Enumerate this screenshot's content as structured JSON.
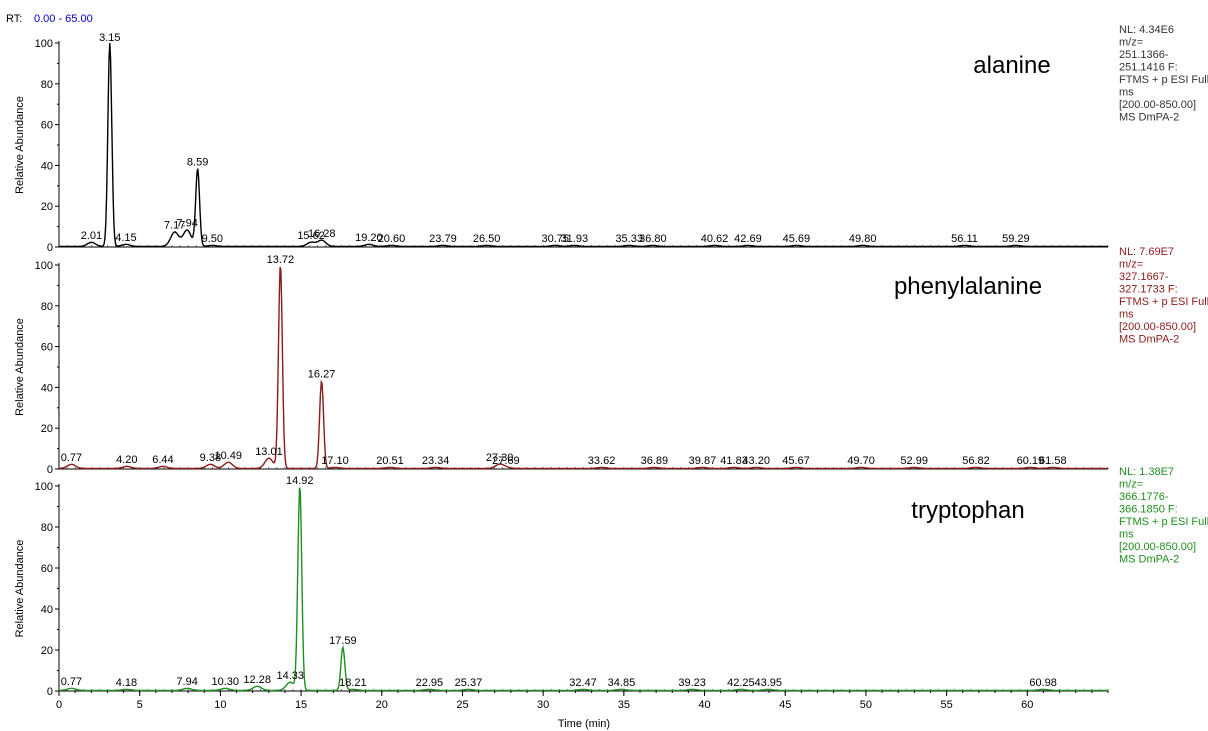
{
  "rt_label": "RT:",
  "rt_range": "0.00 - 65.00",
  "chart_data": {
    "type": "line",
    "xlabel": "Time (min)",
    "xlim": [
      0,
      65
    ],
    "x_ticks": [
      0,
      5,
      10,
      15,
      20,
      25,
      30,
      35,
      40,
      45,
      50,
      55,
      60
    ],
    "panels": [
      {
        "compound": "alanine",
        "ylabel": "Relative Abundance",
        "ylim": [
          0,
          100
        ],
        "y_ticks": [
          0,
          20,
          40,
          60,
          80,
          100
        ],
        "color": "#000000",
        "info": [
          "NL: 4.34E6",
          "m/z=",
          "251.1366-",
          "251.1416 F:",
          "FTMS + p ESI Full",
          "ms",
          "[200.00-850.00]",
          "MS DmPA-2"
        ],
        "peaks": [
          {
            "rt": 3.15,
            "label": "3.15",
            "height": 100
          },
          {
            "rt": 8.59,
            "label": "8.59",
            "height": 38
          },
          {
            "rt": 2.01,
            "label": "2.01",
            "height": 2
          },
          {
            "rt": 4.15,
            "label": "4.15",
            "height": 1
          },
          {
            "rt": 7.17,
            "label": "7.17",
            "height": 7
          },
          {
            "rt": 7.94,
            "label": "7.94",
            "height": 8
          },
          {
            "rt": 9.5,
            "label": "9.50",
            "height": 0.5
          },
          {
            "rt": 15.62,
            "label": "15.62",
            "height": 2
          },
          {
            "rt": 16.28,
            "label": "16.28",
            "height": 3
          },
          {
            "rt": 19.2,
            "label": "19.20",
            "height": 1
          },
          {
            "rt": 20.6,
            "label": "20.60",
            "height": 0.5
          },
          {
            "rt": 23.79,
            "label": "23.79",
            "height": 0.5
          },
          {
            "rt": 26.5,
            "label": "26.50",
            "height": 0.5
          },
          {
            "rt": 30.75,
            "label": "30.75",
            "height": 0.5
          },
          {
            "rt": 31.93,
            "label": "31.93",
            "height": 0.5
          },
          {
            "rt": 35.33,
            "label": "35.33",
            "height": 0.5
          },
          {
            "rt": 36.8,
            "label": "36.80",
            "height": 0.5
          },
          {
            "rt": 40.62,
            "label": "40.62",
            "height": 0.5
          },
          {
            "rt": 42.69,
            "label": "42.69",
            "height": 0.5
          },
          {
            "rt": 45.69,
            "label": "45.69",
            "height": 0.5
          },
          {
            "rt": 49.8,
            "label": "49.80",
            "height": 0.5
          },
          {
            "rt": 56.11,
            "label": "56.11",
            "height": 0.5
          },
          {
            "rt": 59.29,
            "label": "59.29",
            "height": 0.5
          }
        ]
      },
      {
        "compound": "phenylalanine",
        "ylabel": "Relative Abundance",
        "ylim": [
          0,
          100
        ],
        "y_ticks": [
          0,
          20,
          40,
          60,
          80,
          100
        ],
        "color": "#8b1a1a",
        "info": [
          "NL: 7.69E7",
          "m/z=",
          "327.1667-",
          "327.1733 F:",
          "FTMS + p ESI Full",
          "ms",
          "[200.00-850.00]",
          "MS DmPA-2"
        ],
        "peaks": [
          {
            "rt": 13.72,
            "label": "13.72",
            "height": 100
          },
          {
            "rt": 16.27,
            "label": "16.27",
            "height": 43
          },
          {
            "rt": 0.77,
            "label": "0.77",
            "height": 2
          },
          {
            "rt": 4.2,
            "label": "4.20",
            "height": 1
          },
          {
            "rt": 6.44,
            "label": "6.44",
            "height": 1
          },
          {
            "rt": 9.38,
            "label": "9.38",
            "height": 2
          },
          {
            "rt": 10.49,
            "label": "10.49",
            "height": 3
          },
          {
            "rt": 13.01,
            "label": "13.01",
            "height": 5
          },
          {
            "rt": 17.1,
            "label": "17.10",
            "height": 0.5
          },
          {
            "rt": 20.51,
            "label": "20.51",
            "height": 0.5
          },
          {
            "rt": 23.34,
            "label": "23.34",
            "height": 0.5
          },
          {
            "rt": 27.3,
            "label": "27.30",
            "height": 2
          },
          {
            "rt": 27.69,
            "label": "27.69",
            "height": 0.5
          },
          {
            "rt": 33.62,
            "label": "33.62",
            "height": 0.5
          },
          {
            "rt": 36.89,
            "label": "36.89",
            "height": 0.5
          },
          {
            "rt": 39.87,
            "label": "39.87",
            "height": 0.5
          },
          {
            "rt": 41.83,
            "label": "41.83",
            "height": 0.5
          },
          {
            "rt": 43.2,
            "label": "43.20",
            "height": 0.5
          },
          {
            "rt": 45.67,
            "label": "45.67",
            "height": 0.5
          },
          {
            "rt": 49.7,
            "label": "49.70",
            "height": 0.5
          },
          {
            "rt": 52.99,
            "label": "52.99",
            "height": 0.5
          },
          {
            "rt": 56.82,
            "label": "56.82",
            "height": 0.5
          },
          {
            "rt": 60.19,
            "label": "60.19",
            "height": 0.5
          },
          {
            "rt": 61.58,
            "label": "61.58",
            "height": 0.5
          }
        ]
      },
      {
        "compound": "tryptophan",
        "ylabel": "Relative Abundance",
        "ylim": [
          0,
          100
        ],
        "y_ticks": [
          0,
          20,
          40,
          60,
          80,
          100
        ],
        "color": "#1f8f1f",
        "info": [
          "NL: 1.38E7",
          "m/z=",
          "366.1776-",
          "366.1850 F:",
          "FTMS + p ESI Full",
          "ms",
          "[200.00-850.00]",
          "MS DmPA-2"
        ],
        "peaks": [
          {
            "rt": 14.92,
            "label": "14.92",
            "height": 100
          },
          {
            "rt": 17.59,
            "label": "17.59",
            "height": 21
          },
          {
            "rt": 0.77,
            "label": "0.77",
            "height": 1
          },
          {
            "rt": 4.18,
            "label": "4.18",
            "height": 0.5
          },
          {
            "rt": 7.94,
            "label": "7.94",
            "height": 1
          },
          {
            "rt": 10.3,
            "label": "10.30",
            "height": 1
          },
          {
            "rt": 12.28,
            "label": "12.28",
            "height": 2
          },
          {
            "rt": 14.33,
            "label": "14.33",
            "height": 4
          },
          {
            "rt": 18.21,
            "label": "18.21",
            "height": 0.5
          },
          {
            "rt": 22.95,
            "label": "22.95",
            "height": 0.5
          },
          {
            "rt": 25.37,
            "label": "25.37",
            "height": 0.5
          },
          {
            "rt": 32.47,
            "label": "32.47",
            "height": 0.5
          },
          {
            "rt": 34.85,
            "label": "34.85",
            "height": 0.5
          },
          {
            "rt": 39.23,
            "label": "39.23",
            "height": 0.5
          },
          {
            "rt": 42.25,
            "label": "42.25",
            "height": 0.5
          },
          {
            "rt": 43.95,
            "label": "43.95",
            "height": 0.5
          },
          {
            "rt": 60.98,
            "label": "60.98",
            "height": 0.5
          }
        ]
      }
    ]
  }
}
